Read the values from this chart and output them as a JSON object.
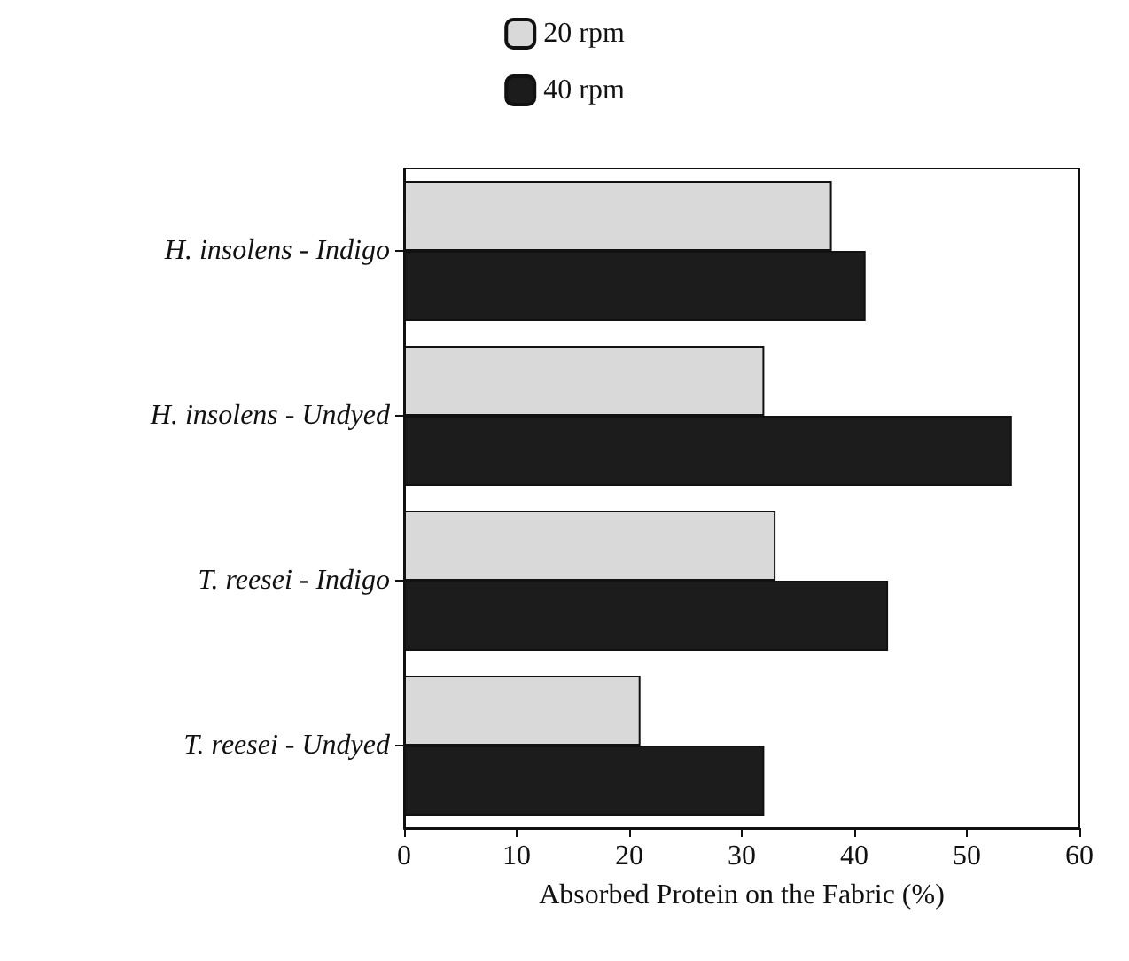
{
  "chart_data": {
    "type": "bar",
    "orientation": "horizontal",
    "xlabel": "Absorbed Protein on the Fabric (%)",
    "categories": [
      "H. insolens - Indigo",
      "H. insolens - Undyed",
      "T. reesei - Indigo",
      "T. reesei - Undyed"
    ],
    "series": [
      {
        "name": "20 rpm",
        "color": "#d9d9d9",
        "values": [
          38,
          32,
          33,
          21
        ]
      },
      {
        "name": "40 rpm",
        "color": "#1c1c1c",
        "values": [
          41,
          54,
          43,
          32
        ]
      }
    ],
    "xlim": [
      0,
      60
    ],
    "xticks": [
      0,
      10,
      20,
      30,
      40,
      50,
      60
    ],
    "grid": false,
    "legend": "top"
  }
}
